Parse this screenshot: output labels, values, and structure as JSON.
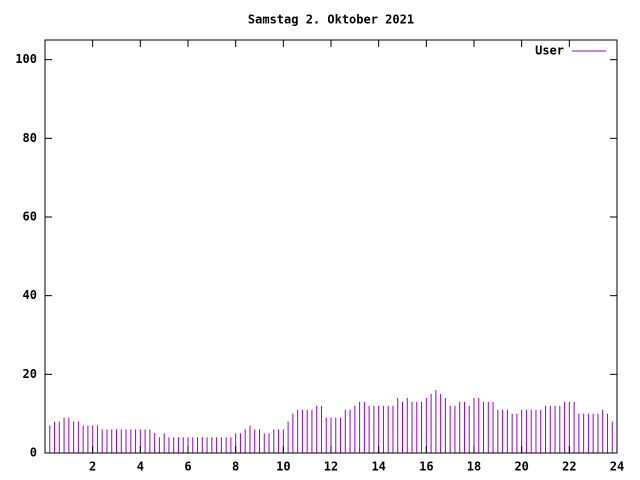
{
  "chart_data": {
    "type": "impulses",
    "title": "Samstag 2. Oktober 2021",
    "x": [
      0,
      0.2,
      0.4,
      0.6,
      0.8,
      1,
      1.2,
      1.4,
      1.6,
      1.8,
      2,
      2.2,
      2.4,
      2.6,
      2.8,
      3,
      3.2,
      3.4,
      3.6,
      3.8,
      4,
      4.2,
      4.4,
      4.6,
      4.8,
      5,
      5.2,
      5.4,
      5.6,
      5.8,
      6,
      6.2,
      6.4,
      6.6,
      6.8,
      7,
      7.2,
      7.4,
      7.6,
      7.8,
      8,
      8.2,
      8.4,
      8.6,
      8.8,
      9,
      9.2,
      9.4,
      9.6,
      9.8,
      10,
      10.2,
      10.4,
      10.6,
      10.8,
      11,
      11.2,
      11.4,
      11.6,
      11.8,
      12,
      12.2,
      12.4,
      12.6,
      12.8,
      13,
      13.2,
      13.4,
      13.6,
      13.8,
      14,
      14.2,
      14.4,
      14.6,
      14.8,
      15,
      15.2,
      15.4,
      15.6,
      15.8,
      16,
      16.2,
      16.4,
      16.6,
      16.8,
      17,
      17.2,
      17.4,
      17.6,
      17.8,
      18,
      18.2,
      18.4,
      18.6,
      18.8,
      19,
      19.2,
      19.4,
      19.6,
      19.8,
      20,
      20.2,
      20.4,
      20.6,
      20.8,
      21,
      21.2,
      21.4,
      21.6,
      21.8,
      22,
      22.2,
      22.4,
      22.6,
      22.8,
      23,
      23.2,
      23.4,
      23.6,
      23.8
    ],
    "series": [
      {
        "name": "User",
        "color": "#9400d3",
        "values": [
          7,
          7,
          8,
          8,
          9,
          9,
          8,
          8,
          7,
          7,
          7,
          7,
          6,
          6,
          6,
          6,
          6,
          6,
          6,
          6,
          6,
          6,
          6,
          5,
          4,
          5,
          4,
          4,
          4,
          4,
          4,
          4,
          4,
          4,
          4,
          4,
          4,
          4,
          4,
          4,
          5,
          5,
          6,
          7,
          6,
          6,
          5,
          5,
          6,
          6,
          6,
          8,
          10,
          11,
          11,
          11,
          11,
          12,
          12,
          9,
          9,
          9,
          9,
          11,
          11,
          12,
          13,
          13,
          12,
          12,
          12,
          12,
          12,
          12,
          14,
          13,
          14,
          13,
          13,
          13,
          14,
          15,
          16,
          15,
          14,
          12,
          12,
          13,
          13,
          12,
          14,
          14,
          13,
          13,
          13,
          11,
          11,
          11,
          10,
          10,
          11,
          11,
          11,
          11,
          11,
          12,
          12,
          12,
          12,
          13,
          13,
          13,
          10,
          10,
          10,
          10,
          10,
          11,
          10,
          8
        ]
      }
    ],
    "xlim": [
      0,
      24
    ],
    "xticks": [
      2,
      4,
      6,
      8,
      10,
      12,
      14,
      16,
      18,
      20,
      22,
      24
    ],
    "ylim": [
      0,
      105
    ],
    "yticks": [
      0,
      20,
      40,
      60,
      80,
      100
    ],
    "legend": "top-right"
  }
}
